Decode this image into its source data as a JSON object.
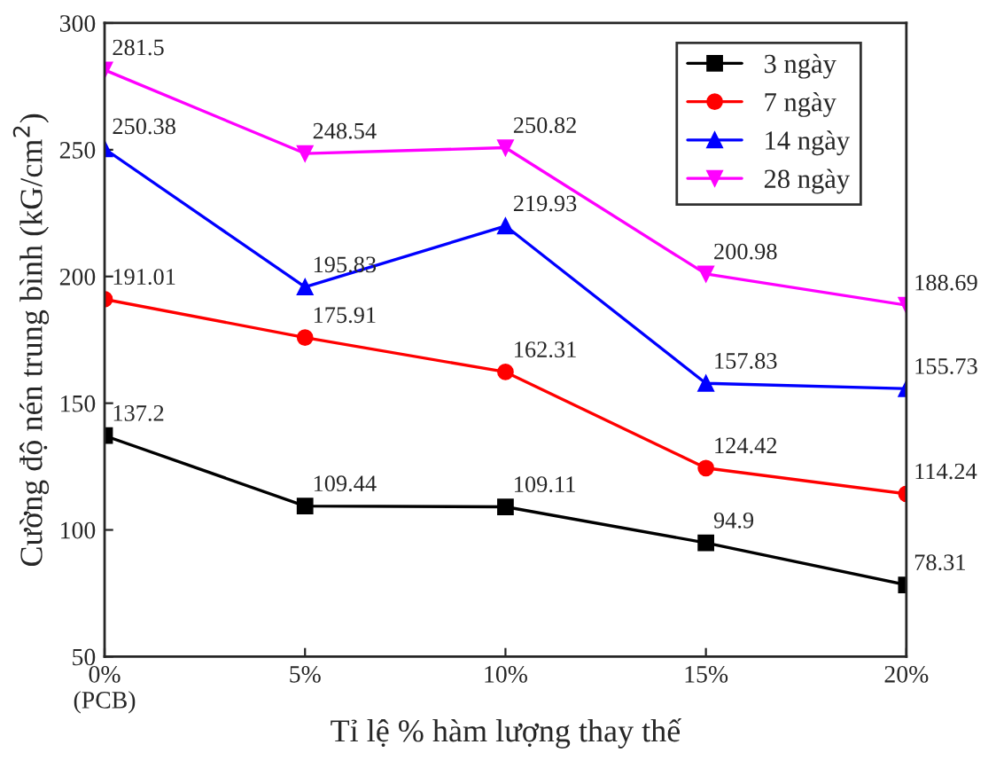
{
  "chart_data": {
    "type": "line",
    "xlabel": "Tỉ lệ % hàm lượng thay thế",
    "ylabel": "Cường độ nén trung bình (kG/cm$^{2}$)",
    "categories": [
      "0%\n(PCB)",
      "5%",
      "10%",
      "15%",
      "20%"
    ],
    "ylim": [
      50,
      300
    ],
    "yticks": [
      50,
      100,
      150,
      200,
      250,
      300
    ],
    "series": [
      {
        "name": "3 ngày",
        "color": "#000000",
        "marker": "square",
        "values": [
          137.2,
          109.44,
          109.11,
          94.9,
          78.31
        ]
      },
      {
        "name": "7 ngày",
        "color": "#ff0000",
        "marker": "circle",
        "values": [
          191.01,
          175.91,
          162.31,
          124.42,
          114.24
        ]
      },
      {
        "name": "14 ngày",
        "color": "#0000ff",
        "marker": "triangle",
        "values": [
          250.38,
          195.83,
          219.93,
          157.83,
          155.73
        ]
      },
      {
        "name": "28 ngày",
        "color": "#ff00ff",
        "marker": "triangle_down",
        "values": [
          281.5,
          248.54,
          250.82,
          200.98,
          188.69
        ]
      }
    ],
    "data_labels": true,
    "legend": "top right",
    "grid": false,
    "line_style": "solid"
  }
}
